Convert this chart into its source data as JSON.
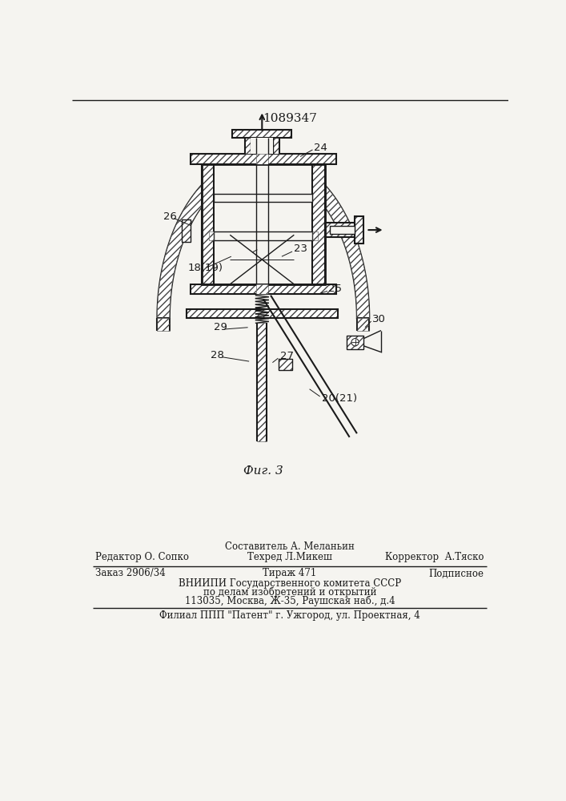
{
  "patent_number": "1089347",
  "fig_label": "Фиг. 3",
  "bg_color": "#f5f4f0",
  "line_color": "#1a1a1a",
  "footer": {
    "line1_center": "Составитель А. Меланьин",
    "line2_left": "Редактор О. Сопко",
    "line2_center": "Техред Л.Микеш",
    "line2_right": "Корректор  А.Тяско",
    "line3_left": "Заказ 2906/34",
    "line3_center": "Тираж 471",
    "line3_right": "Подписное",
    "line4": "ВНИИПИ Государственного комитета СССР",
    "line5": "по делам изобретений и открытий",
    "line6": "113035, Москва, Ж-35, Раушская наб., д.4",
    "line7": "Филиал ППП \"Патент\" г. Ужгород, ул. Проектная, 4"
  }
}
